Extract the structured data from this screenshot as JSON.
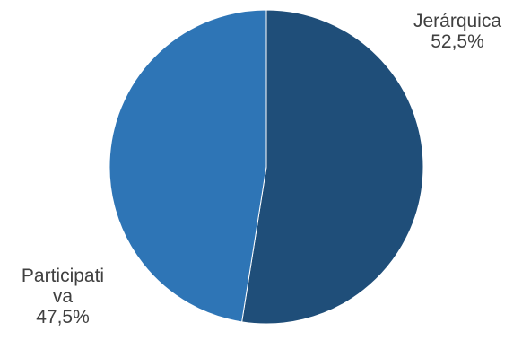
{
  "chart_data": {
    "type": "pie",
    "title": "",
    "slices": [
      {
        "label": "Jerárquica",
        "value": 52.5,
        "value_text": "52,5%",
        "color": "#1f4e79"
      },
      {
        "label": "Participativa",
        "label_lines": [
          "Participati",
          "va"
        ],
        "value": 47.5,
        "value_text": "47,5%",
        "color": "#2e75b6"
      }
    ],
    "legend": "none"
  }
}
